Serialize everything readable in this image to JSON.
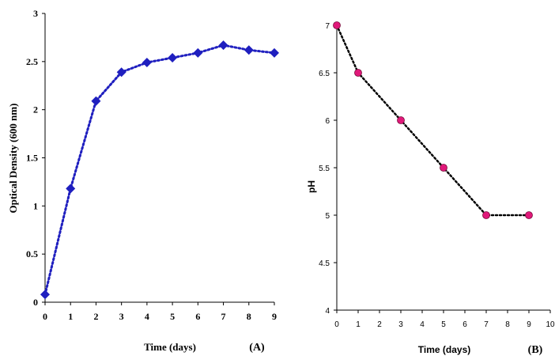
{
  "chart_data": [
    {
      "type": "line",
      "panel_label": "(A)",
      "xlabel": "Time (days)",
      "ylabel": "Optical Density (600 nm)",
      "x": [
        0,
        1,
        2,
        3,
        4,
        5,
        6,
        7,
        8,
        9
      ],
      "series": [
        {
          "values": [
            0.08,
            1.18,
            2.09,
            2.39,
            2.49,
            2.54,
            2.59,
            2.67,
            2.62,
            2.59
          ],
          "color": "#1f1fbf",
          "marker": "diamond",
          "line_style": "dotted"
        }
      ],
      "xlim": [
        0,
        9
      ],
      "ylim": [
        0,
        3
      ],
      "xticks": [
        "0",
        "1",
        "2",
        "3",
        "4",
        "5",
        "6",
        "7",
        "8",
        "9"
      ],
      "yticks": [
        "0",
        "0.5",
        "1",
        "1.5",
        "2",
        "2.5",
        "3"
      ],
      "grid": false
    },
    {
      "type": "line",
      "panel_label": "(B)",
      "xlabel": "Time (days)",
      "ylabel": "pH",
      "x": [
        0,
        1,
        3,
        5,
        7,
        9
      ],
      "series": [
        {
          "values": [
            7,
            6.5,
            6,
            5.5,
            5,
            5
          ],
          "color": "#000000",
          "marker_color": "#e0197a",
          "marker": "circle",
          "line_style": "dotted"
        }
      ],
      "xlim": [
        0,
        10
      ],
      "ylim": [
        4,
        7
      ],
      "xticks": [
        "0",
        "1",
        "2",
        "3",
        "4",
        "5",
        "6",
        "7",
        "8",
        "9",
        "10"
      ],
      "yticks": [
        "4",
        "4.5",
        "5",
        "5.5",
        "6",
        "6.5",
        "7"
      ],
      "grid": false
    }
  ]
}
